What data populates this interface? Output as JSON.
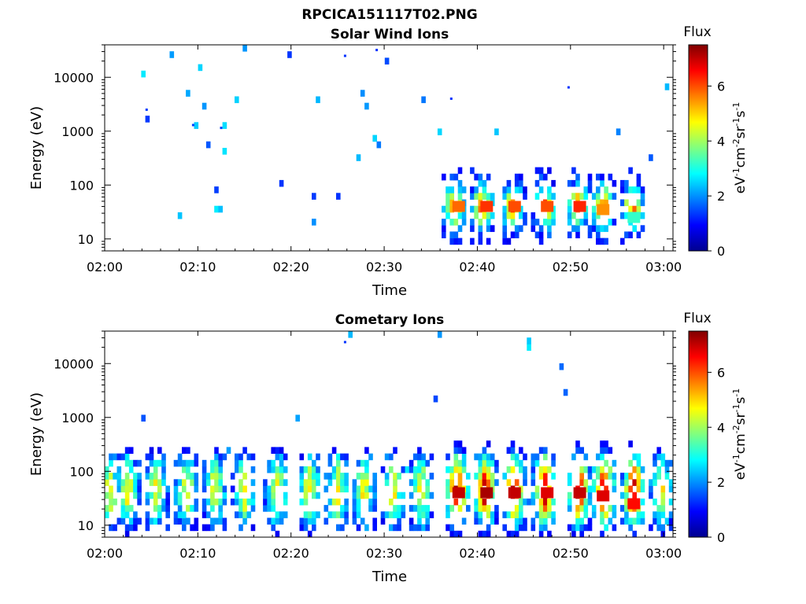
{
  "figure": {
    "title": "RPCICA151117T02.PNG"
  },
  "colormap": {
    "name": "jet",
    "min": 0,
    "max": 7.5
  },
  "chart_data": [
    {
      "type": "heatmap",
      "title": "Solar Wind Ions",
      "xlabel": "Time",
      "ylabel": "Energy (eV)",
      "x_ticks": [
        "02:00",
        "02:10",
        "02:20",
        "02:30",
        "02:40",
        "02:50",
        "03:00"
      ],
      "x_range_minutes": [
        0,
        61
      ],
      "y_scale": "log",
      "y_ticks": [
        "10",
        "100",
        "1000",
        "10000"
      ],
      "y_range": [
        6,
        40000
      ],
      "colorbar": {
        "title": "Flux",
        "unit": "eV-1cm-2sr-1s-1",
        "ticks": [
          "0",
          "2",
          "4",
          "6"
        ],
        "range": [
          0,
          7.5
        ]
      },
      "features": [
        {
          "t_min": 4.5,
          "energy": 2500,
          "flux": 1.4
        },
        {
          "t_min": 9.5,
          "energy": 1300,
          "flux": 1.4
        },
        {
          "t_min": 12.5,
          "energy": 1150,
          "flux": 1.4
        },
        {
          "t_min": 25.8,
          "energy": 25000,
          "flux": 1.3
        },
        {
          "t_min": 29.2,
          "energy": 32000,
          "flux": 1.3
        },
        {
          "t_min": 37.2,
          "energy": 4000,
          "flux": 1.3
        },
        {
          "t_min": 49.8,
          "energy": 6500,
          "flux": 1.3
        },
        {
          "t_min": 38.0,
          "energy": 40,
          "flux": 5.8
        },
        {
          "t_min": 41.0,
          "energy": 40,
          "flux": 6.2
        },
        {
          "t_min": 44.0,
          "energy": 40,
          "flux": 6.0
        },
        {
          "t_min": 47.5,
          "energy": 40,
          "flux": 6.0
        },
        {
          "t_min": 51.0,
          "energy": 40,
          "flux": 6.3
        },
        {
          "t_min": 53.5,
          "energy": 35,
          "flux": 5.5
        },
        {
          "t_min": 56.8,
          "energy": 25,
          "flux": 3.2
        }
      ]
    },
    {
      "type": "heatmap",
      "title": "Cometary Ions",
      "xlabel": "Time",
      "ylabel": "Energy (eV)",
      "x_ticks": [
        "02:00",
        "02:10",
        "02:20",
        "02:30",
        "02:40",
        "02:50",
        "03:00"
      ],
      "x_range_minutes": [
        0,
        61
      ],
      "y_scale": "log",
      "y_ticks": [
        "10",
        "100",
        "1000",
        "10000"
      ],
      "y_range": [
        6,
        40000
      ],
      "colorbar": {
        "title": "Flux",
        "unit": "eV-1cm-2sr-1s-1",
        "ticks": [
          "0",
          "2",
          "4",
          "6"
        ],
        "range": [
          0,
          7.5
        ]
      },
      "features": [
        {
          "t_min": 25.8,
          "energy": 25000,
          "flux": 1.3
        },
        {
          "t_min": 38.0,
          "energy": 40,
          "flux": 7.0
        },
        {
          "t_min": 41.0,
          "energy": 40,
          "flux": 7.2
        },
        {
          "t_min": 44.0,
          "energy": 40,
          "flux": 7.0
        },
        {
          "t_min": 47.5,
          "energy": 40,
          "flux": 6.8
        },
        {
          "t_min": 51.0,
          "energy": 40,
          "flux": 7.0
        },
        {
          "t_min": 53.5,
          "energy": 35,
          "flux": 6.8
        },
        {
          "t_min": 56.8,
          "energy": 25,
          "flux": 6.5
        }
      ]
    }
  ]
}
